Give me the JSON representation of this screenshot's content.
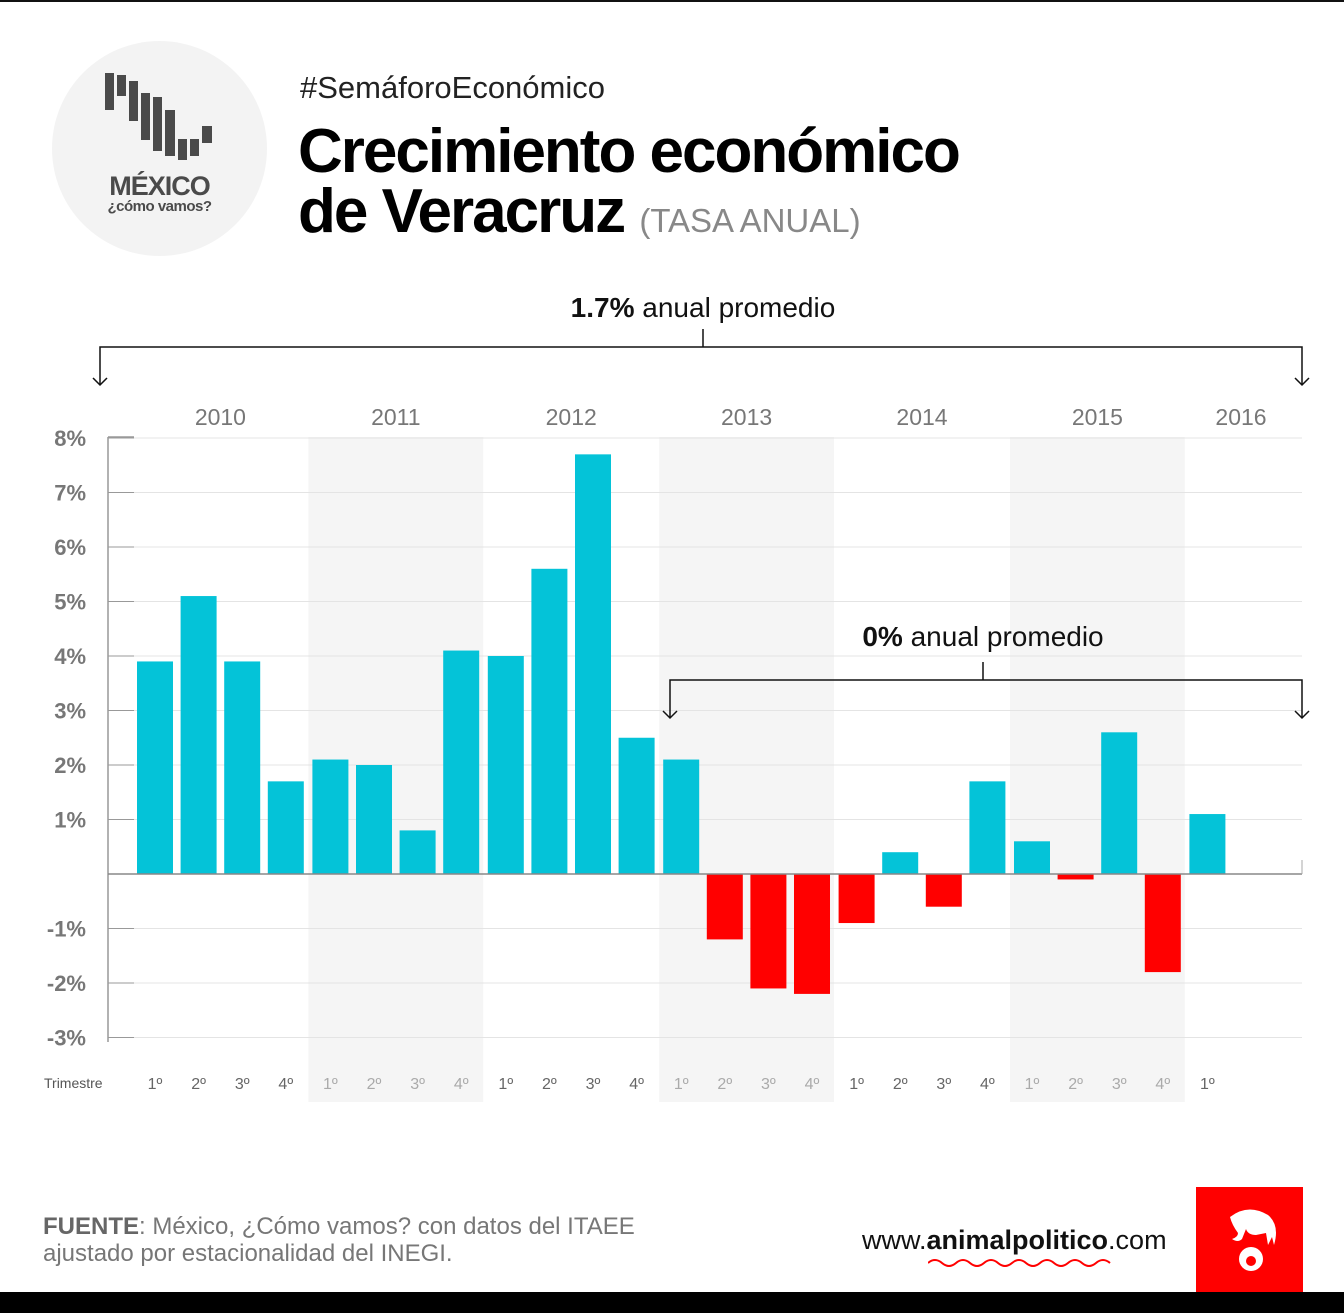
{
  "header": {
    "hashtag": "#SemáforoEconómico",
    "title_line1": "Crecimiento económico",
    "title_line2": "de Veracruz",
    "subtitle": "(TASA ANUAL)"
  },
  "logo": {
    "name": "MÉXICO",
    "tagline": "¿cómo vamos?"
  },
  "footer": {
    "source_label": "FUENTE",
    "source_text": ": México, ¿Cómo vamos? con datos del ITAEE",
    "source_text2": "ajustado por estacionalidad del INEGI.",
    "site_prefix": "www.",
    "site_bold": "animalpolitico",
    "site_suffix": ".com"
  },
  "chart_data": {
    "type": "bar",
    "title": "Crecimiento económico de Veracruz (TASA ANUAL)",
    "xlabel": "Trimestre",
    "ylabel": "",
    "ylim": [
      -3,
      8
    ],
    "yticks": [
      "8%",
      "7%",
      "6%",
      "5%",
      "4%",
      "3%",
      "2%",
      "1%",
      "-1%",
      "-2%",
      "-3%"
    ],
    "ytick_values": [
      8,
      7,
      6,
      5,
      4,
      3,
      2,
      1,
      -1,
      -2,
      -3
    ],
    "grid": true,
    "years": [
      "2010",
      "2011",
      "2012",
      "2013",
      "2014",
      "2015",
      "2016"
    ],
    "shaded_years": [
      "2011",
      "2013",
      "2015"
    ],
    "categories": [
      "2010 1º",
      "2010 2º",
      "2010 3º",
      "2010 4º",
      "2011 1º",
      "2011 2º",
      "2011 3º",
      "2011 4º",
      "2012 1º",
      "2012 2º",
      "2012 3º",
      "2012 4º",
      "2013 1º",
      "2013 2º",
      "2013 3º",
      "2013 4º",
      "2014 1º",
      "2014 2º",
      "2014 3º",
      "2014 4º",
      "2015 1º",
      "2015 2º",
      "2015 3º",
      "2015 4º",
      "2016 1º"
    ],
    "quarter_labels": [
      "1º",
      "2º",
      "3º",
      "4º",
      "1º",
      "2º",
      "3º",
      "4º",
      "1º",
      "2º",
      "3º",
      "4º",
      "1º",
      "2º",
      "3º",
      "4º",
      "1º",
      "2º",
      "3º",
      "4º",
      "1º",
      "2º",
      "3º",
      "4º",
      "1º"
    ],
    "values": [
      3.9,
      5.1,
      3.9,
      1.7,
      2.1,
      2.0,
      0.8,
      4.1,
      4.0,
      5.6,
      7.7,
      2.5,
      2.1,
      -1.2,
      -2.1,
      -2.2,
      -0.9,
      0.4,
      -0.6,
      1.7,
      0.6,
      -0.1,
      2.6,
      -1.8,
      1.1
    ],
    "colors": {
      "positive": "#04c3d8",
      "negative": "#ff0000",
      "shade": "#f5f5f5"
    },
    "annotations": [
      {
        "bold": "1.7%",
        "text": " anual promedio",
        "from": "2010 1º",
        "to": "2016 1º"
      },
      {
        "bold": "0%",
        "text": " anual promedio",
        "from": "2013 1º",
        "to": "2016 1º"
      }
    ]
  }
}
